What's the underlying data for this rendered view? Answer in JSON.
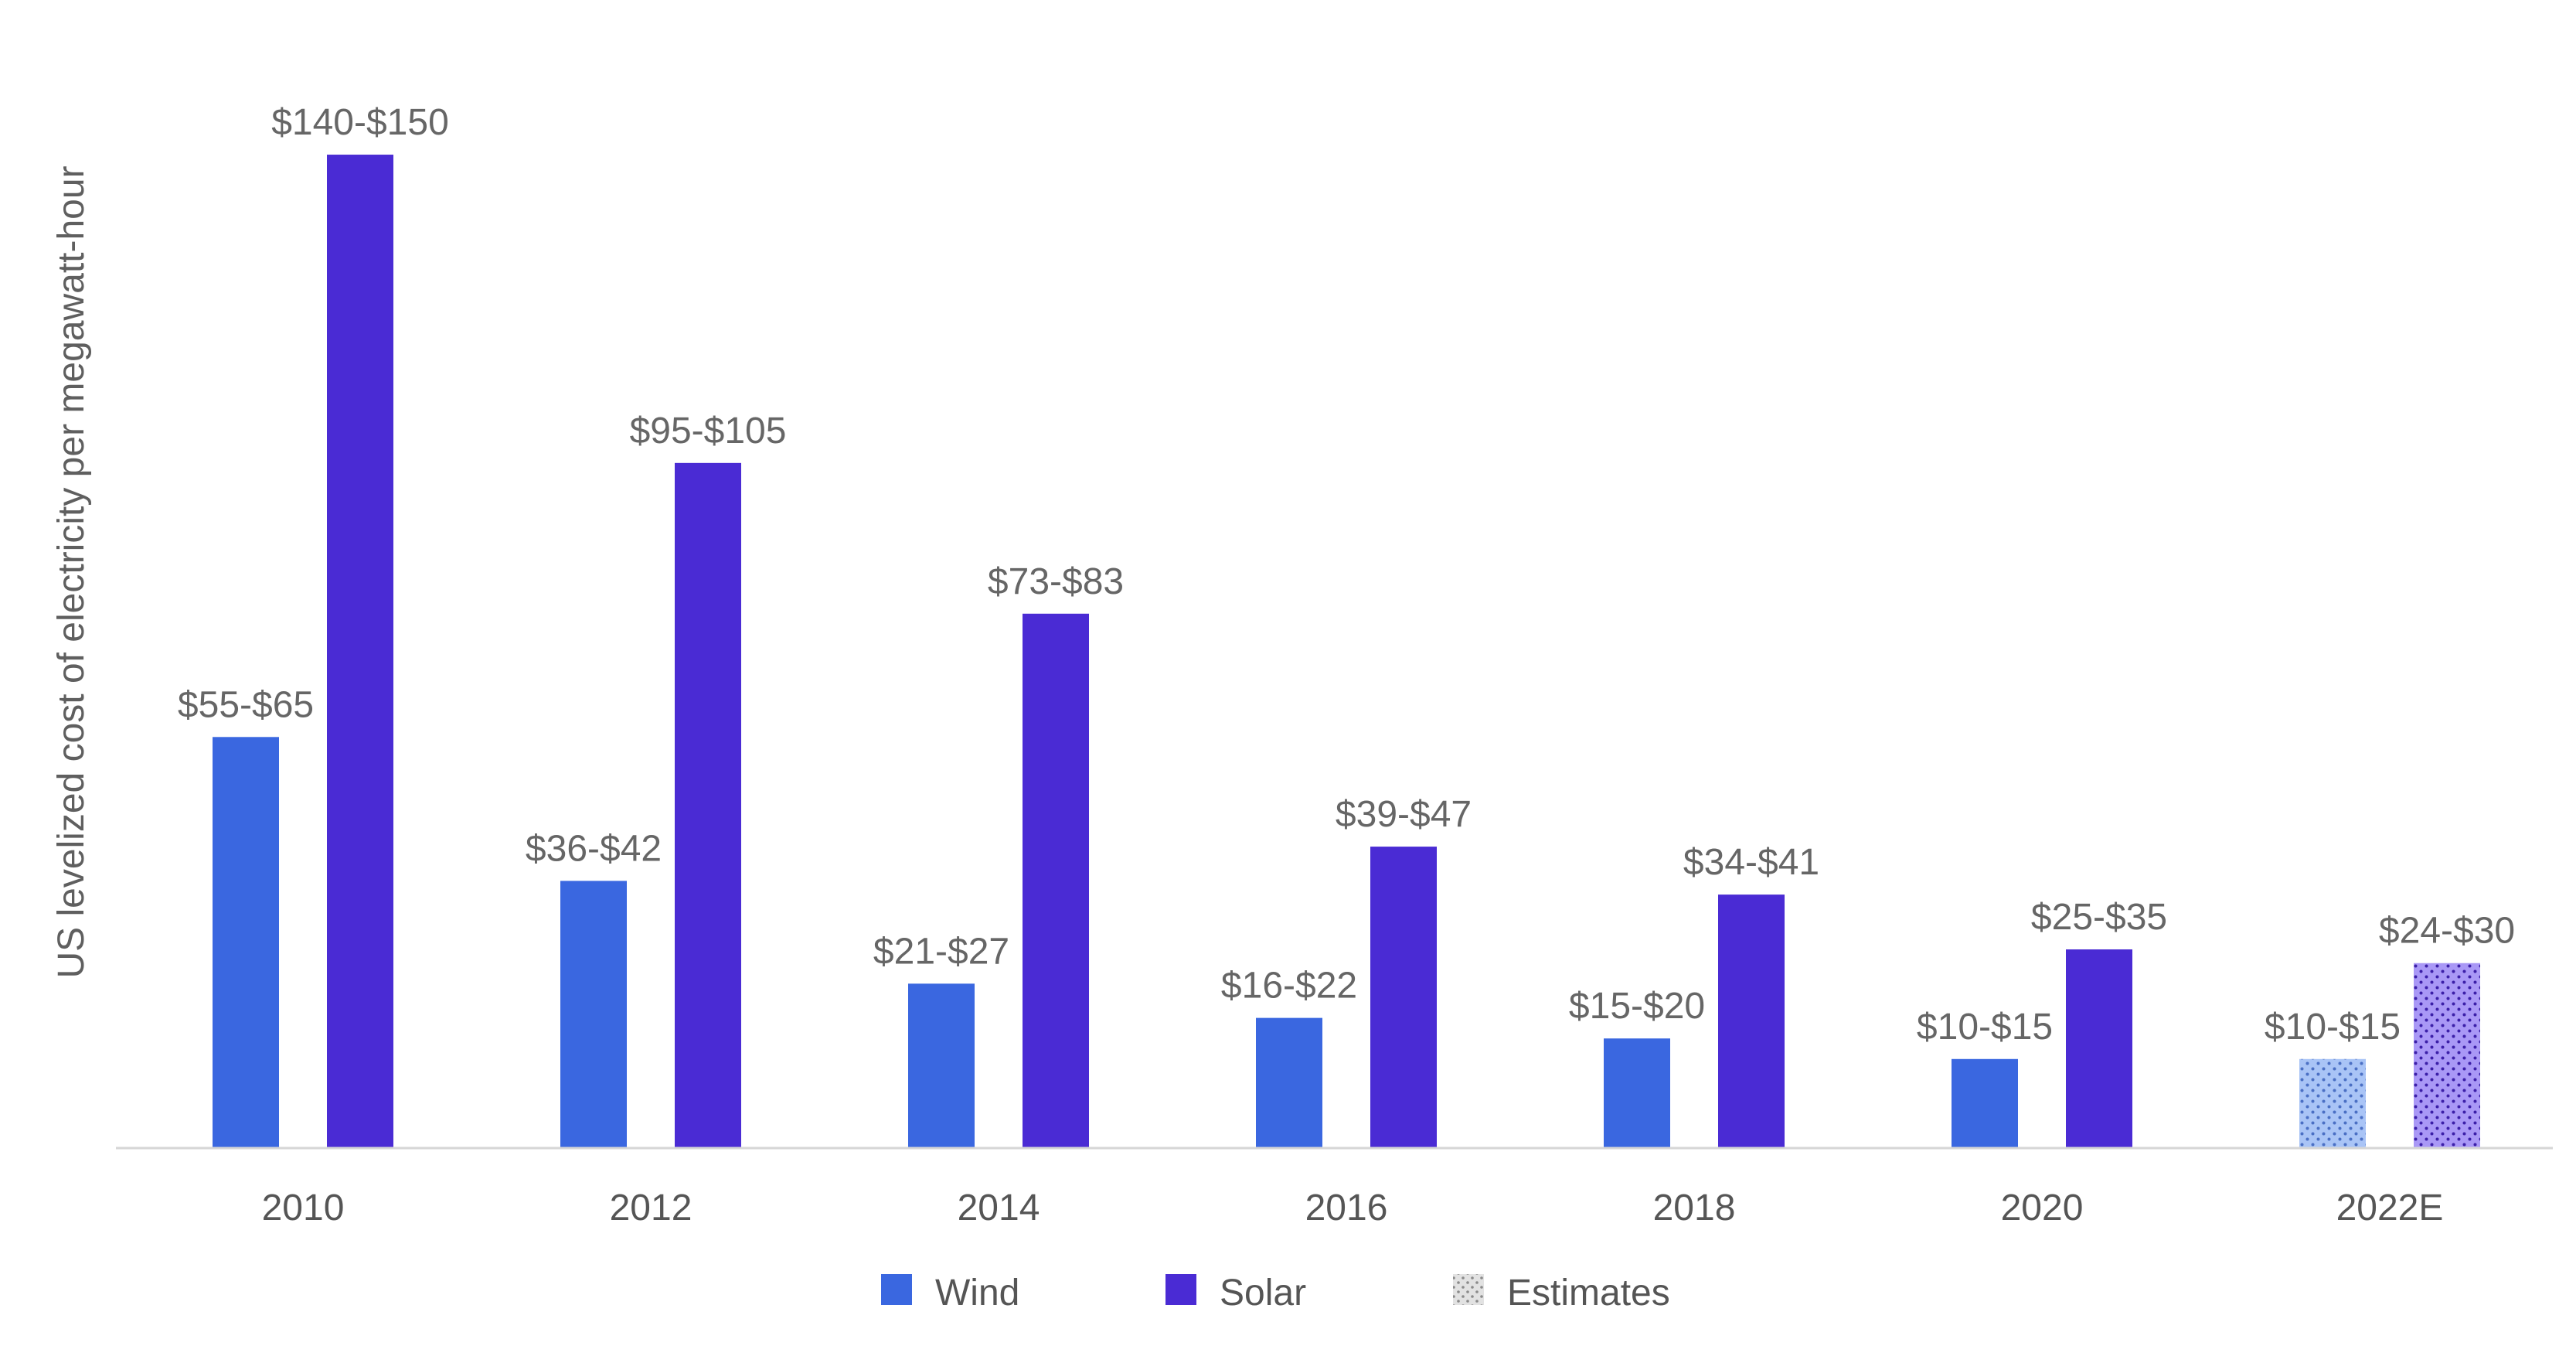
{
  "chart_data": {
    "type": "bar",
    "ylabel": "US levelized cost of electricity per megawatt-hour",
    "xlabel": "",
    "ylim": [
      0,
      152
    ],
    "grid": false,
    "legend_position": "bottom-center",
    "categories": [
      "2010",
      "2012",
      "2014",
      "2016",
      "2018",
      "2020",
      "2022E"
    ],
    "estimate_categories": [
      "2022E"
    ],
    "series": [
      {
        "name": "Wind",
        "color": "#3a67e0",
        "estimate_color": "#a9c4f6",
        "values": [
          60,
          39,
          24,
          19,
          16,
          13,
          13
        ],
        "labels": [
          "$55-$65",
          "$36-$42",
          "$21-$27",
          "$16-$22",
          "$15-$20",
          "$10-$15",
          "$10-$15"
        ]
      },
      {
        "name": "Solar",
        "color": "#4a2bd4",
        "estimate_color": "#a998f6",
        "values": [
          145,
          100,
          78,
          44,
          37,
          29,
          27
        ],
        "labels": [
          "$140-$150",
          "$95-$105",
          "$73-$83",
          "$39-$47",
          "$34-$41",
          "$25-$35",
          "$24-$30"
        ]
      }
    ],
    "legend": [
      {
        "label": "Wind",
        "color": "#3a67e0",
        "pattern": "solid"
      },
      {
        "label": "Solar",
        "color": "#4a2bd4",
        "pattern": "solid"
      },
      {
        "label": "Estimates",
        "color": "#d9d9d9",
        "pattern": "dotted"
      }
    ]
  }
}
